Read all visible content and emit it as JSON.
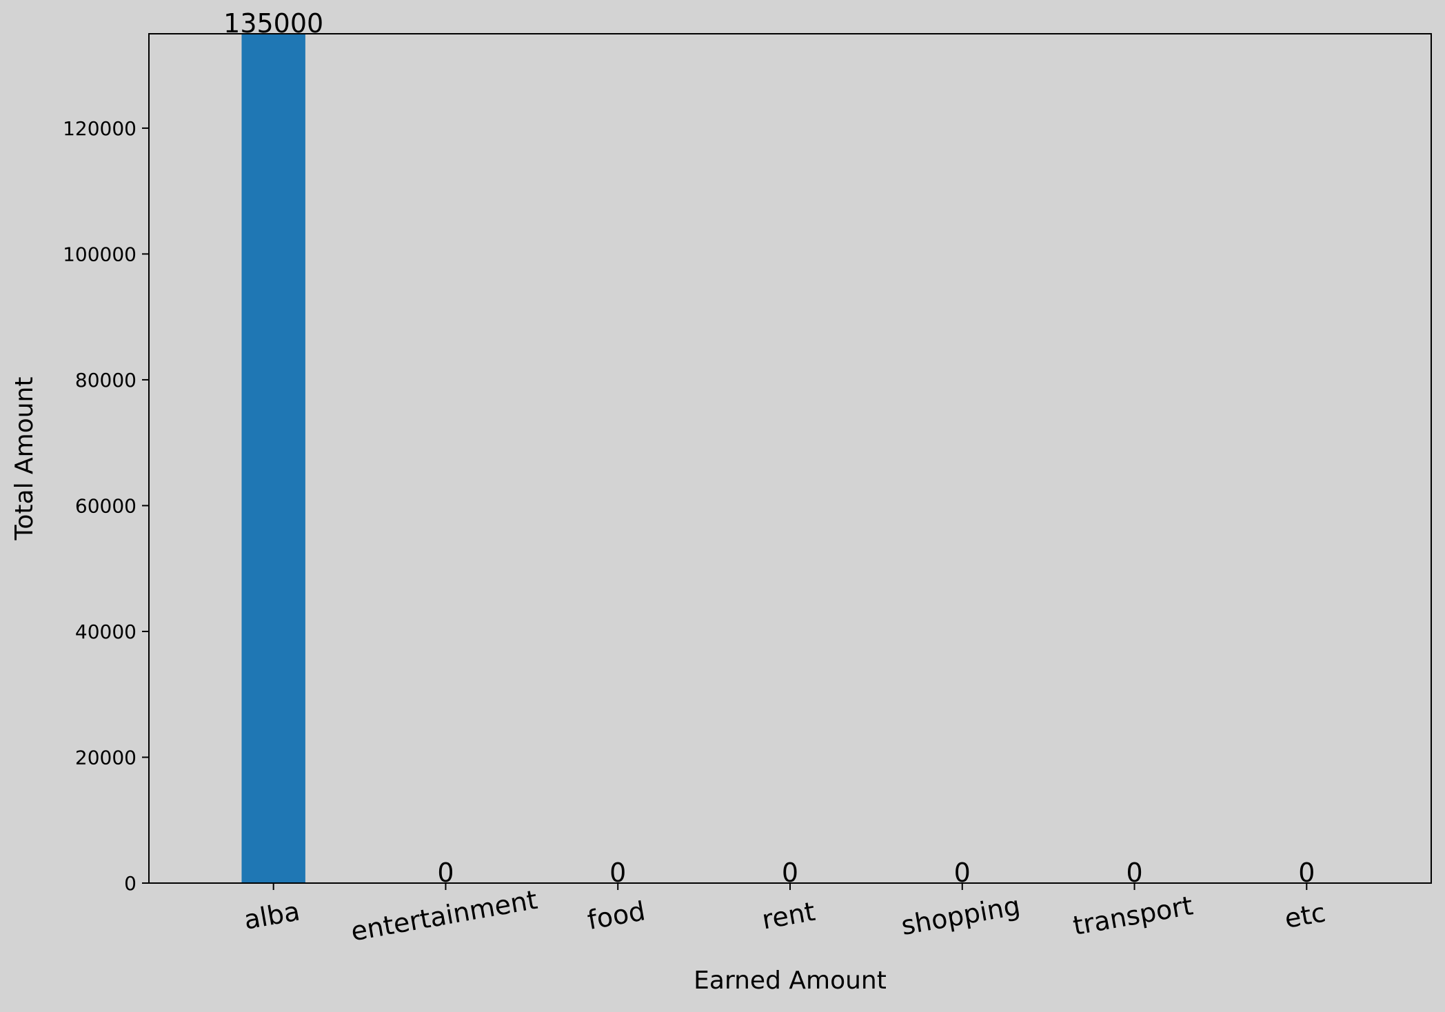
{
  "chart_data": {
    "type": "bar",
    "title": "",
    "xlabel": "Earned Amount",
    "ylabel": "Total Amount",
    "categories": [
      "alba",
      "entertainment",
      "food",
      "rent",
      "shopping",
      "transport",
      "etc"
    ],
    "values": [
      135000,
      0,
      0,
      0,
      0,
      0,
      0
    ],
    "value_labels": [
      "135000",
      "0",
      "0",
      "0",
      "0",
      "0",
      "0"
    ],
    "ylim": [
      0,
      135000
    ],
    "yticks": [
      0,
      20000,
      40000,
      60000,
      80000,
      100000,
      120000
    ],
    "ytick_labels": [
      "0",
      "20000",
      "40000",
      "60000",
      "80000",
      "100000",
      "120000"
    ],
    "x_tick_rotation_deg": 10,
    "grid": false,
    "legend": "none",
    "bar_color": "#1f77b4",
    "background_color": "#d3d3d3",
    "axes_color": "#000000"
  }
}
